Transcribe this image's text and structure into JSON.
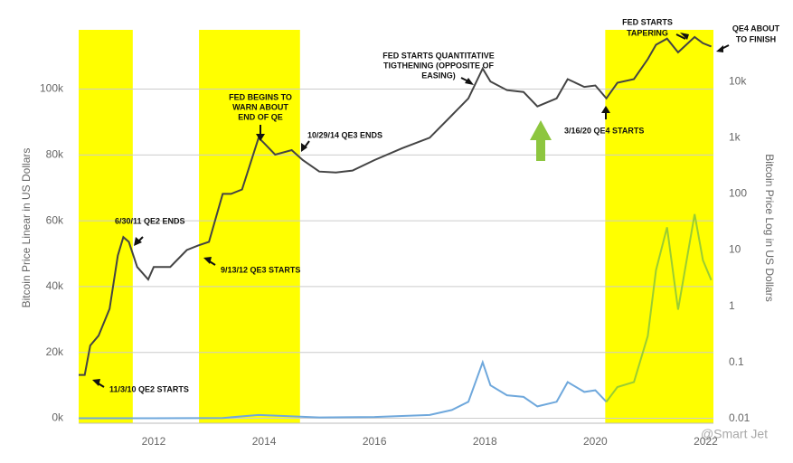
{
  "chart_data": {
    "type": "line",
    "ylabel": "Bitcoin Price Linear in US Dollars",
    "y2label": "Bitcoin Price Log in US Dollars",
    "xlim": [
      2010.64,
      2022.14
    ],
    "xticks": [
      2012,
      2014,
      2016,
      2018,
      2020,
      2022
    ],
    "ylim": [
      -1500,
      118000
    ],
    "yticks": [
      {
        "value": 0,
        "label": "0k"
      },
      {
        "value": 20000,
        "label": "20k"
      },
      {
        "value": 40000,
        "label": "40k"
      },
      {
        "value": 60000,
        "label": "60k"
      },
      {
        "value": 80000,
        "label": "80k"
      },
      {
        "value": 100000,
        "label": "100k"
      }
    ],
    "y2lim": [
      0.0083,
      83000
    ],
    "y2ticks": [
      0.01,
      0.1,
      1,
      10,
      100,
      {
        "value": 1000,
        "label": "1k"
      },
      {
        "value": 10000,
        "label": "10k"
      }
    ],
    "y2log": true,
    "grid": true,
    "band_color": "#ffff00",
    "bands": [
      [
        2010.64,
        2011.62
      ],
      [
        2012.82,
        2014.65
      ],
      [
        2020.18,
        2022.14
      ]
    ],
    "series": [
      {
        "color": "#444444",
        "axis": "y2",
        "x": [
          2010.64,
          2010.75,
          2010.85,
          2011.0,
          2011.2,
          2011.35,
          2011.45,
          2011.55,
          2011.7,
          2011.9,
          2012.0,
          2012.3,
          2012.6,
          2012.8,
          2013.0,
          2013.25,
          2013.4,
          2013.6,
          2013.9,
          2014.0,
          2014.2,
          2014.5,
          2014.7,
          2015.0,
          2015.3,
          2015.6,
          2016.0,
          2016.5,
          2017.0,
          2017.4,
          2017.7,
          2017.96,
          2018.1,
          2018.4,
          2018.7,
          2018.95,
          2019.3,
          2019.5,
          2019.8,
          2020.0,
          2020.2,
          2020.4,
          2020.7,
          2020.95,
          2021.1,
          2021.3,
          2021.5,
          2021.8,
          2021.95,
          2022.1
        ],
        "values": [
          0.06,
          0.06,
          0.2,
          0.3,
          0.9,
          8,
          17,
          14,
          5,
          3,
          5,
          5,
          10,
          12,
          14,
          100,
          100,
          120,
          1000,
          800,
          500,
          600,
          400,
          250,
          240,
          260,
          400,
          650,
          1000,
          2500,
          5000,
          17000,
          10000,
          7000,
          6500,
          3600,
          5000,
          11000,
          8000,
          8500,
          5000,
          9500,
          11000,
          25000,
          45000,
          58000,
          33000,
          62000,
          48000,
          42000
        ]
      },
      {
        "color": "#6fa8dc",
        "x": [
          2010.64,
          2012.0,
          2013.25,
          2013.9,
          2014.5,
          2015.0,
          2016.0,
          2017.0,
          2017.4,
          2017.7,
          2017.96,
          2018.1,
          2018.4,
          2018.7,
          2018.95,
          2019.3,
          2019.5,
          2019.8,
          2020.0,
          2020.2
        ],
        "values": [
          0.06,
          5,
          100,
          1000,
          600,
          250,
          400,
          1000,
          2500,
          5000,
          17000,
          10000,
          7000,
          6500,
          3600,
          5000,
          11000,
          8000,
          8500,
          5000
        ]
      },
      {
        "color": "#9acd32",
        "x": [
          2020.2,
          2020.4,
          2020.7,
          2020.95,
          2021.1,
          2021.3,
          2021.5,
          2021.8,
          2021.95,
          2022.1
        ],
        "values": [
          5000,
          9500,
          11000,
          25000,
          45000,
          58000,
          33000,
          62000,
          48000,
          42000
        ]
      }
    ],
    "annotations": [
      {
        "lines": [
          "FED STARTS",
          "TAPERING"
        ]
      },
      {
        "lines": [
          "QE4 ABOUT",
          "TO FINISH"
        ]
      },
      {
        "lines": [
          "FED STARTS QUANTITATIVE",
          "TIGTHENING (OPPOSITE OF",
          "EASING)"
        ]
      },
      {
        "lines": [
          "FED BEGINS TO",
          "WARN ABOUT",
          "END OF QE"
        ]
      },
      {
        "lines": [
          "10/29/14 QE3 ENDS"
        ]
      },
      {
        "lines": [
          "3/16/20 QE4 STARTS"
        ]
      },
      {
        "lines": [
          "6/30/11 QE2 ENDS"
        ]
      },
      {
        "lines": [
          "9/13/12 QE3 STARTS"
        ]
      },
      {
        "lines": [
          "11/3/10 QE2 STARTS"
        ]
      }
    ],
    "watermark": "@Smart Jet"
  }
}
